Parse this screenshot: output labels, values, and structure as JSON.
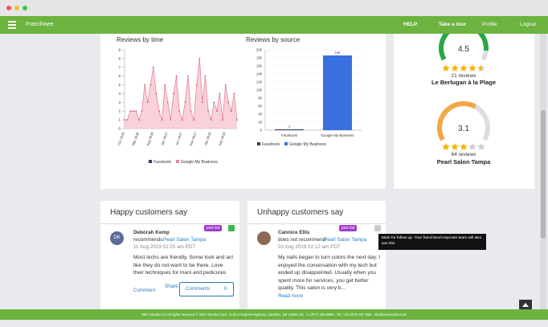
{
  "nav": {
    "brand": "Franchisee",
    "items": [
      "HELP",
      "Take a tour",
      "Profile",
      "Logout"
    ]
  },
  "reviews_by_time": {
    "type": "line",
    "title": "Reviews by time",
    "categories": [
      "Oct 2015",
      null,
      null,
      null,
      null,
      "Mar 2016",
      null,
      null,
      null,
      null,
      "Aug 2016",
      null,
      null,
      null,
      null,
      "Jan 2017",
      null,
      null,
      null,
      null,
      "Jun 2017",
      null,
      null,
      null,
      null,
      "Nov 2017",
      null,
      null,
      null,
      null,
      "Apr 2018",
      null,
      null,
      null,
      null,
      "Sep 2018",
      null,
      null,
      null,
      null
    ],
    "values": [
      1,
      1,
      2,
      2,
      2,
      1,
      2,
      5,
      3,
      5,
      7,
      4,
      2,
      1,
      5,
      3,
      1,
      4,
      6,
      2,
      1,
      3,
      6,
      2,
      1,
      5,
      8,
      3,
      6,
      2,
      1,
      3,
      2,
      4,
      1,
      5,
      3,
      2,
      4,
      1
    ],
    "color": "#e7849a",
    "ylim": [
      0,
      9
    ],
    "yticks": [
      0,
      1,
      2,
      3,
      4,
      5,
      6,
      7,
      8,
      9
    ],
    "legend": [
      {
        "name": "Facebook",
        "color": "#2c3e66"
      },
      {
        "name": "Google My Business",
        "color": "#e7849a"
      }
    ]
  },
  "reviews_by_source": {
    "type": "bar",
    "title": "Reviews by source",
    "categories": [
      "Facebook",
      "Google My Business"
    ],
    "values": [
      2,
      186
    ],
    "colors": [
      "#2c3e66",
      "#3a6fe0"
    ],
    "ylim": [
      0,
      200
    ],
    "yticks": [
      0,
      20,
      40,
      60,
      80,
      100,
      120,
      140,
      160,
      180,
      200
    ],
    "legend": [
      {
        "name": "Facebook",
        "color": "#2c3e66"
      },
      {
        "name": "Google My Business",
        "color": "#3a6fe0"
      }
    ]
  },
  "locations": {
    "gauge_lim": [
      0,
      5
    ],
    "items": [
      {
        "rating": 4.5,
        "color": "#27a844",
        "reviews": "21 reviews",
        "name": "Le Berlugan à la Plage"
      },
      {
        "rating": 3.1,
        "color": "#f5a742",
        "reviews": "64 reviews",
        "name": "Pearl Salon Tampa"
      }
    ]
  },
  "happy": {
    "title": "Happy customers say",
    "badge": "pick list",
    "avatar": "DK",
    "author": "Deborah Kemp",
    "verb": "recommends",
    "place": "Pearl Salon Tampa",
    "date": "11 Aug 2019 02:25 am PDT",
    "text": "Most techs are friendly. Some look and act like they do not want to be there. Love their techniques for mani and pedicures",
    "comment": "Comment",
    "share": "Share",
    "comments": "Comments",
    "count": "0"
  },
  "unhappy": {
    "title": "Unhappy customers say",
    "badge": "pick list",
    "author": "Cannice Ellis",
    "verb": "does not recommend",
    "place": "Pearl Salon Tampa",
    "date": "03 Aug 2019 02:12 am PDT",
    "text": "My nails began to turn colors the next day. I enjoyed the conversation with my tech but ended up disappointed. Usually when you spent more for services, you get better quality. This salon is very b...",
    "more": "Read more",
    "tooltip": "Mark for follow up. Your franchisor/corporate team will also see this"
  },
  "footer": "SEO Samba 2.0 All rights reserved © SEO Samba Corp. 2146 S Dupont Highway, Camden, DE 19934 US, +1 (877) 450-9894 - Fit: +33 (0)75 637 635 - info@seosamba.com"
}
